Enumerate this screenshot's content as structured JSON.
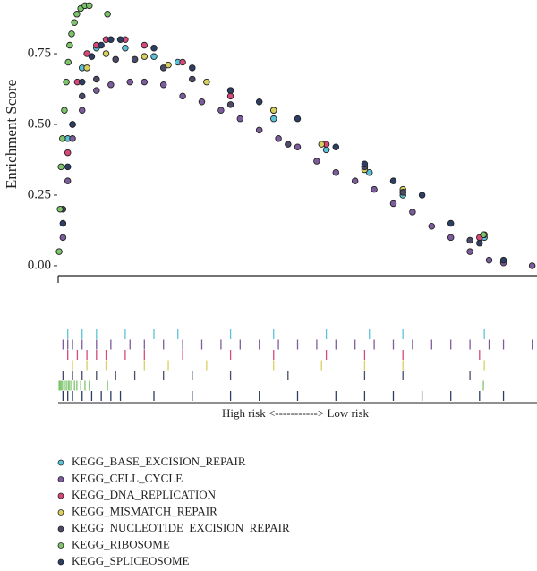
{
  "chart_data": {
    "type": "scatter",
    "ylabel": "Enrichment Score",
    "xlabel": "High risk <-----------> Low risk",
    "xlim": [
      0,
      100
    ],
    "ylim": [
      -0.035,
      0.94
    ],
    "yticks": [
      {
        "value": 0,
        "label": "0.00"
      },
      {
        "value": 0.25,
        "label": "0.25"
      },
      {
        "value": 0.5,
        "label": "0.50"
      },
      {
        "value": 0.75,
        "label": "0.75"
      }
    ],
    "series": [
      {
        "name": "KEGG_BASE_EXCISION_REPAIR",
        "color": "#5bc3d9",
        "x": [
          2,
          5,
          8,
          14,
          20,
          25,
          36,
          45,
          56,
          65,
          72,
          89
        ],
        "values": [
          0.45,
          0.7,
          0.77,
          0.77,
          0.74,
          0.72,
          0.62,
          0.52,
          0.41,
          0.33,
          0.25,
          0.1
        ]
      },
      {
        "name": "KEGG_CELL_CYCLE",
        "color": "#7d5c9e",
        "x": [
          1,
          2,
          3,
          5,
          8,
          11,
          15,
          18,
          22,
          26,
          30,
          34,
          38,
          42,
          46,
          50,
          54,
          58,
          62,
          66,
          70,
          74,
          78,
          82,
          86,
          90,
          93,
          99
        ],
        "values": [
          0.1,
          0.3,
          0.45,
          0.55,
          0.62,
          0.64,
          0.65,
          0.65,
          0.64,
          0.6,
          0.58,
          0.55,
          0.52,
          0.48,
          0.45,
          0.42,
          0.37,
          0.33,
          0.3,
          0.27,
          0.22,
          0.19,
          0.14,
          0.1,
          0.05,
          0.02,
          0.01,
          0.0
        ]
      },
      {
        "name": "KEGG_DNA_REPLICATION",
        "color": "#d9487a",
        "x": [
          2,
          4,
          6,
          8,
          10,
          14,
          18,
          26,
          36,
          45,
          56,
          64,
          72,
          88
        ],
        "values": [
          0.4,
          0.65,
          0.75,
          0.78,
          0.8,
          0.8,
          0.78,
          0.72,
          0.6,
          0.55,
          0.43,
          0.35,
          0.26,
          0.1
        ]
      },
      {
        "name": "KEGG_MISMATCH_REPAIR",
        "color": "#d8cf5e",
        "x": [
          3,
          6,
          10,
          18,
          23,
          31,
          45,
          55,
          64,
          72,
          89
        ],
        "values": [
          0.5,
          0.7,
          0.75,
          0.74,
          0.71,
          0.65,
          0.55,
          0.43,
          0.34,
          0.27,
          0.11
        ]
      },
      {
        "name": "KEGG_NUCLEOTIDE_EXCISION_REPAIR",
        "color": "#4b4a68",
        "x": [
          1,
          3,
          5,
          8,
          12,
          16,
          22,
          28,
          36,
          48,
          64,
          72,
          86
        ],
        "values": [
          0.2,
          0.5,
          0.6,
          0.66,
          0.73,
          0.73,
          0.7,
          0.66,
          0.57,
          0.43,
          0.35,
          0.26,
          0.09
        ]
      },
      {
        "name": "KEGG_RIBOSOME",
        "color": "#7dc46b",
        "x": [
          0.2,
          0.4,
          0.6,
          0.9,
          1.3,
          1.7,
          2.1,
          2.4,
          2.8,
          3.4,
          3.9,
          4.7,
          5.6,
          6.5,
          10.3,
          88.8
        ],
        "values": [
          0.05,
          0.2,
          0.35,
          0.45,
          0.55,
          0.65,
          0.72,
          0.78,
          0.82,
          0.86,
          0.89,
          0.91,
          0.92,
          0.92,
          0.89,
          0.11
        ]
      },
      {
        "name": "KEGG_SPLICEOSOME",
        "color": "#2c3e66",
        "x": [
          1,
          2,
          3,
          5,
          7,
          9,
          11,
          13,
          20,
          28,
          36,
          42,
          50,
          58,
          64,
          70,
          76,
          82,
          88,
          93
        ],
        "values": [
          0.15,
          0.35,
          0.5,
          0.65,
          0.74,
          0.78,
          0.8,
          0.8,
          0.77,
          0.7,
          0.62,
          0.58,
          0.52,
          0.42,
          0.36,
          0.3,
          0.25,
          0.15,
          0.08,
          0.02
        ]
      }
    ]
  }
}
